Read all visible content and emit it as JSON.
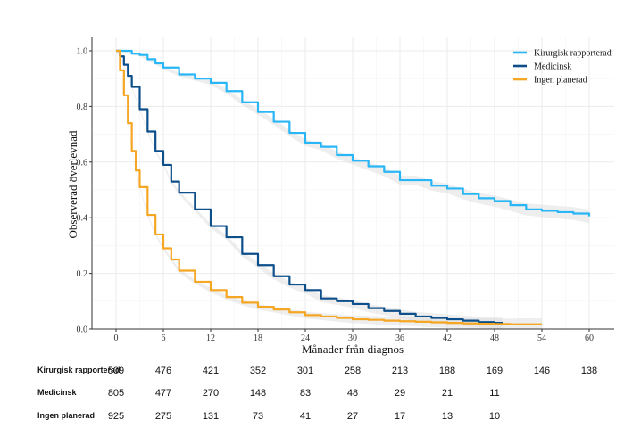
{
  "chart_data": {
    "type": "line",
    "title": "",
    "xlabel": "Månader från diagnos",
    "ylabel": "Observerad överlevnad",
    "xlim": [
      0,
      60
    ],
    "ylim": [
      0,
      1.0
    ],
    "xticks": [
      "0",
      "6",
      "12",
      "18",
      "24",
      "30",
      "36",
      "42",
      "48",
      "54",
      "60"
    ],
    "yticks": [
      "0.0",
      "0.2",
      "0.4",
      "0.6",
      "0.8",
      "1.0"
    ],
    "grid": true,
    "legend_position": "top-right",
    "series": [
      {
        "name": "Kirurgisk rapporterad",
        "color": "#29b6f6",
        "x": [
          0,
          1,
          2,
          3,
          4,
          5,
          6,
          8,
          10,
          12,
          14,
          16,
          18,
          20,
          22,
          24,
          26,
          28,
          30,
          32,
          34,
          36,
          38,
          40,
          42,
          44,
          46,
          48,
          50,
          52,
          54,
          56,
          58,
          60
        ],
        "y": [
          1.0,
          1.0,
          0.99,
          0.985,
          0.97,
          0.955,
          0.94,
          0.915,
          0.9,
          0.885,
          0.855,
          0.815,
          0.78,
          0.745,
          0.705,
          0.67,
          0.655,
          0.625,
          0.605,
          0.585,
          0.565,
          0.535,
          0.535,
          0.515,
          0.505,
          0.485,
          0.47,
          0.46,
          0.445,
          0.43,
          0.425,
          0.42,
          0.415,
          0.405
        ]
      },
      {
        "name": "Medicinsk",
        "color": "#0d4f8b",
        "x": [
          0,
          0.5,
          1,
          1.5,
          2,
          3,
          4,
          5,
          6,
          7,
          8,
          10,
          12,
          14,
          16,
          18,
          20,
          22,
          24,
          26,
          28,
          30,
          32,
          34,
          36,
          38,
          40,
          42,
          44,
          46,
          48,
          49
        ],
        "y": [
          1.0,
          0.98,
          0.95,
          0.91,
          0.87,
          0.79,
          0.71,
          0.64,
          0.59,
          0.53,
          0.49,
          0.43,
          0.37,
          0.33,
          0.27,
          0.23,
          0.19,
          0.16,
          0.14,
          0.11,
          0.1,
          0.09,
          0.075,
          0.065,
          0.055,
          0.045,
          0.04,
          0.035,
          0.03,
          0.025,
          0.022,
          0.02
        ]
      },
      {
        "name": "Ingen planerad",
        "color": "#f5a623",
        "x": [
          0,
          0.5,
          1,
          1.5,
          2,
          2.5,
          3,
          4,
          5,
          6,
          7,
          8,
          10,
          12,
          14,
          16,
          18,
          20,
          22,
          24,
          26,
          28,
          30,
          32,
          34,
          36,
          38,
          40,
          42,
          44,
          46,
          48,
          50,
          52,
          54
        ],
        "y": [
          1.0,
          0.93,
          0.84,
          0.74,
          0.64,
          0.57,
          0.51,
          0.41,
          0.34,
          0.29,
          0.25,
          0.21,
          0.17,
          0.14,
          0.115,
          0.095,
          0.08,
          0.07,
          0.06,
          0.05,
          0.045,
          0.04,
          0.035,
          0.033,
          0.03,
          0.028,
          0.026,
          0.024,
          0.022,
          0.02,
          0.019,
          0.018,
          0.017,
          0.017,
          0.017
        ]
      }
    ],
    "risk_table": {
      "times": [
        0,
        6,
        12,
        18,
        24,
        30,
        36,
        42,
        48,
        54,
        60
      ],
      "rows": [
        {
          "label": "Kirurgisk rapporterad",
          "values": [
            "509",
            "476",
            "421",
            "352",
            "301",
            "258",
            "213",
            "188",
            "169",
            "146",
            "138"
          ]
        },
        {
          "label": "Medicinsk",
          "values": [
            "805",
            "477",
            "270",
            "148",
            "83",
            "48",
            "29",
            "21",
            "11",
            "",
            ""
          ]
        },
        {
          "label": "Ingen planerad",
          "values": [
            "925",
            "275",
            "131",
            "73",
            "41",
            "27",
            "17",
            "13",
            "10",
            "",
            ""
          ]
        }
      ]
    }
  }
}
